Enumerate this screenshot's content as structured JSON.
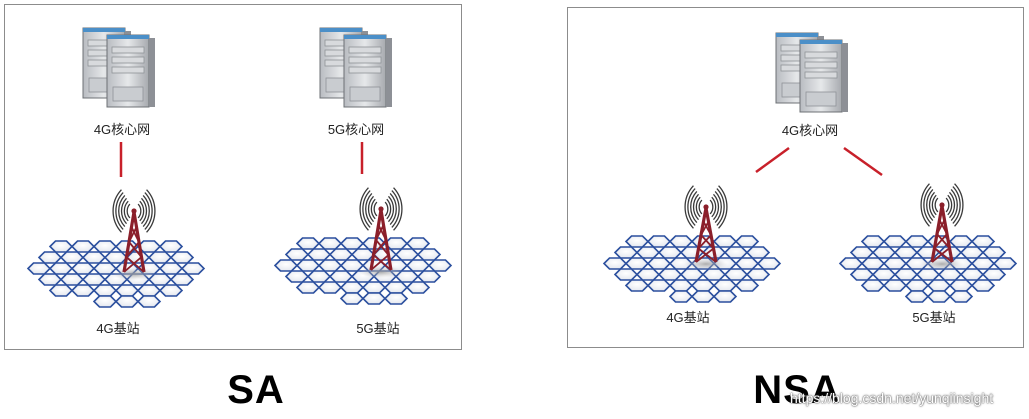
{
  "sa": {
    "label": "SA",
    "core_left": "4G核心网",
    "core_right": "5G核心网",
    "station_left": "4G基站",
    "station_right": "5G基站"
  },
  "nsa": {
    "label": "NSA",
    "core": "4G核心网",
    "station_left": "4G基站",
    "station_right": "5G基站"
  },
  "watermark": "https://blog.csdn.net/yunqiinsight",
  "colors": {
    "link": "#c8202a",
    "tower": "#8b1f2a",
    "hex_border": "#2b4f9e",
    "frame": "#8c8c8c"
  }
}
